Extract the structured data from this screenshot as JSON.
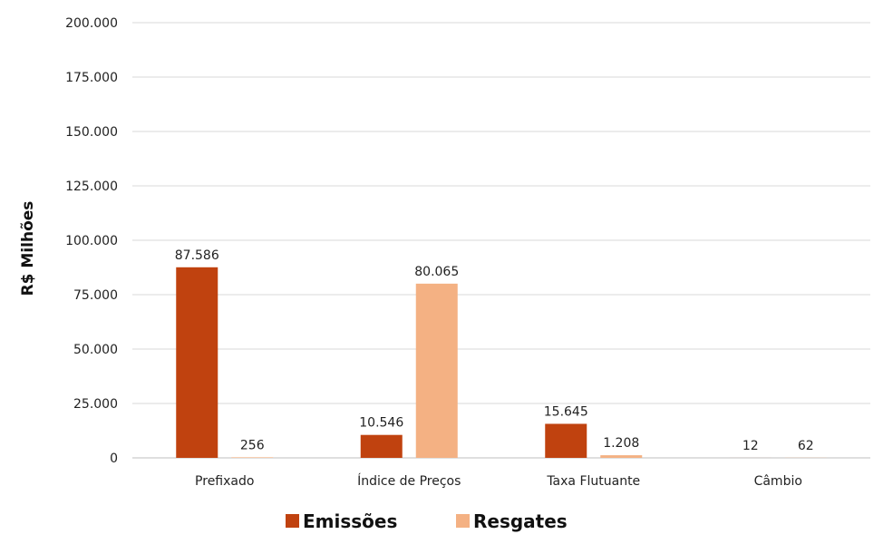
{
  "chart_data": {
    "type": "bar",
    "categories": [
      "Prefixado",
      "Índice de Preços",
      "Taxa Flutuante",
      "Câmbio"
    ],
    "series": [
      {
        "name": "Emissões",
        "values": [
          87586,
          10546,
          15645,
          12
        ],
        "labels": [
          "87.586",
          "10.546",
          "15.645",
          "12"
        ],
        "color": "#c0420f"
      },
      {
        "name": "Resgates",
        "values": [
          256,
          80065,
          1208,
          62
        ],
        "labels": [
          "256",
          "80.065",
          "1.208",
          "62"
        ],
        "color": "#f4b183"
      }
    ],
    "ylabel": "R$ Milhões",
    "ylim": [
      0,
      200000
    ],
    "yticks": [
      0,
      25000,
      50000,
      75000,
      100000,
      125000,
      150000,
      175000,
      200000
    ],
    "ytick_labels": [
      "0",
      "25.000",
      "50.000",
      "75.000",
      "100.000",
      "125.000",
      "150.000",
      "175.000",
      "200.000"
    ],
    "grid": true,
    "legend": "bottom"
  }
}
